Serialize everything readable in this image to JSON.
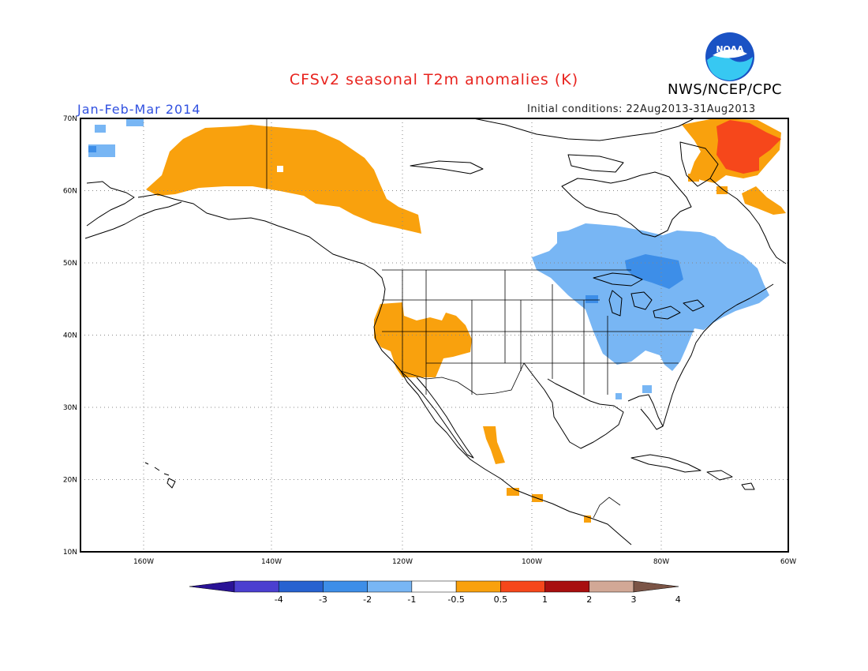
{
  "header": {
    "title": "CFSv2 seasonal T2m anomalies (K)",
    "title_color": "#e8231e",
    "period": "Jan-Feb-Mar 2014",
    "period_color": "#3050e0",
    "initial_conditions": "Initial conditions: 22Aug2013-31Aug2013",
    "agency": "NWS/NCEP/CPC",
    "logo_text": "NOAA"
  },
  "map": {
    "lon_range": [
      -172,
      -60
    ],
    "lat_range": [
      10,
      70
    ],
    "lat_labels": [
      "70N",
      "60N",
      "50N",
      "40N",
      "30N",
      "20N",
      "10N"
    ],
    "lon_labels": [
      "160W",
      "140W",
      "120W",
      "100W",
      "80W",
      "60W"
    ],
    "gridlines": "dotted"
  },
  "colorbar": {
    "labels": [
      "-4",
      "-3",
      "-2",
      "-1",
      "-0.5",
      "0.5",
      "1",
      "2",
      "3",
      "4"
    ],
    "colors": [
      "#2a1396",
      "#4b3fd0",
      "#2762d0",
      "#3d8ee8",
      "#78b6f4",
      "#ffffff",
      "#f9a10d",
      "#f6471b",
      "#a80f0f",
      "#d2a896",
      "#7b5446"
    ]
  },
  "anomaly_regions": [
    {
      "name": "alaska-yukon-warm",
      "category": "0.5 to 1"
    },
    {
      "name": "southwest-us-warm",
      "category": "0.5 to 1"
    },
    {
      "name": "western-mexico-warm",
      "category": "0.5 to 1"
    },
    {
      "name": "labrador-warm",
      "category": "0.5 to 2"
    },
    {
      "name": "great-lakes-northeast-cool",
      "category": "-1 to -0.5"
    },
    {
      "name": "bering-sea-cool",
      "category": "-1 to -0.5"
    }
  ]
}
